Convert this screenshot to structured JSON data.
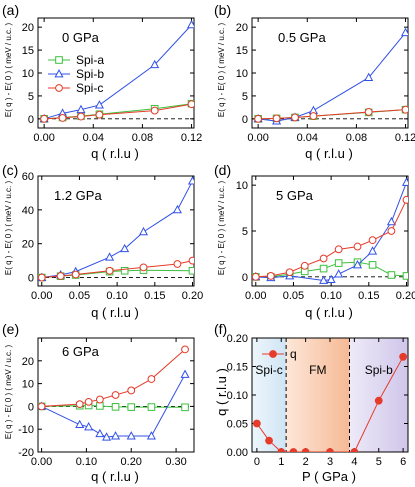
{
  "styles": {
    "green": "#3cc03c",
    "blue": "#3050e6",
    "red": "#e63a2a",
    "axis": "#000000",
    "phase_spi_c": "#d6e9f6",
    "phase_fm": "#f9c7a4",
    "phase_spi_b": "#ddd6f0"
  },
  "chart_data": [
    {
      "panel": "(a)",
      "type": "line",
      "annotation": "0 GPa",
      "xlabel": "q ( r.l.u )",
      "ylabel": "E( q ) - E( 0 ) ( meV / u.c. )",
      "xlim": [
        -0.005,
        0.122
      ],
      "ylim": [
        -2,
        22
      ],
      "xticks": [
        "0.00",
        "0.04",
        "0.08",
        "0.12"
      ],
      "xtick_values": [
        0,
        0.04,
        0.08,
        0.12
      ],
      "yticks": [
        "0",
        "5",
        "10",
        "15",
        "20"
      ],
      "ytick_values": [
        0,
        5,
        10,
        15,
        20
      ],
      "show_x_ticklabels": true,
      "zero_line": true,
      "legend": "top-left",
      "series": [
        {
          "name": "Spi-a",
          "color_key": "green",
          "marker": "square",
          "x": [
            0,
            0.015,
            0.03,
            0.045,
            0.09,
            0.12
          ],
          "y": [
            0,
            0.3,
            0.6,
            1.0,
            2.2,
            3.3
          ]
        },
        {
          "name": "Spi-b",
          "color_key": "blue",
          "marker": "triangle",
          "x": [
            0,
            0.015,
            0.03,
            0.045,
            0.09,
            0.12
          ],
          "y": [
            0,
            1.2,
            2.0,
            3.0,
            11.8,
            20.5
          ]
        },
        {
          "name": "Spi-c",
          "color_key": "red",
          "marker": "circle",
          "x": [
            0,
            0.015,
            0.03,
            0.045,
            0.09,
            0.12
          ],
          "y": [
            0,
            0.2,
            0.5,
            0.9,
            1.8,
            3.2
          ]
        }
      ]
    },
    {
      "panel": "(b)",
      "type": "line",
      "annotation": "0.5 GPa",
      "xlabel": "q ( r.l.u )",
      "ylabel": "",
      "xlim": [
        -0.005,
        0.122
      ],
      "ylim": [
        -2,
        22
      ],
      "xticks": [
        "0.00",
        "0.04",
        "0.08",
        "0.12"
      ],
      "xtick_values": [
        0,
        0.04,
        0.08,
        0.12
      ],
      "yticks": [
        "0",
        "5",
        "10",
        "15",
        "20"
      ],
      "ytick_values": [
        0,
        5,
        10,
        15,
        20
      ],
      "show_x_ticklabels": true,
      "zero_line": true,
      "series": [
        {
          "name": "Spi-a",
          "color_key": "green",
          "marker": "square",
          "x": [
            0,
            0.015,
            0.03,
            0.045,
            0.09,
            0.12
          ],
          "y": [
            0,
            0.1,
            0.3,
            0.6,
            1.4,
            2.0
          ]
        },
        {
          "name": "Spi-b",
          "color_key": "blue",
          "marker": "triangle",
          "x": [
            0,
            0.015,
            0.03,
            0.045,
            0.09,
            0.12
          ],
          "y": [
            0,
            -0.5,
            0.3,
            1.8,
            9.0,
            18.8
          ]
        },
        {
          "name": "Spi-c",
          "color_key": "red",
          "marker": "circle",
          "x": [
            0,
            0.015,
            0.03,
            0.045,
            0.09,
            0.12
          ],
          "y": [
            0,
            0.1,
            0.3,
            0.6,
            1.5,
            2.0
          ]
        }
      ]
    },
    {
      "panel": "(c)",
      "type": "line",
      "annotation": "1.2 GPa",
      "xlabel": "q ( r.l.u )",
      "ylabel": "E( q ) - E( 0 ) ( meV / u.c. )",
      "xlim": [
        -0.005,
        0.202
      ],
      "ylim": [
        -5,
        60
      ],
      "xticks": [
        "0.00",
        "0.05",
        "0.10",
        "0.15",
        "0.20"
      ],
      "xtick_values": [
        0,
        0.05,
        0.1,
        0.15,
        0.2
      ],
      "yticks": [
        "0",
        "20",
        "40",
        "60"
      ],
      "ytick_values": [
        0,
        20,
        40,
        60
      ],
      "show_x_ticklabels": true,
      "zero_line": true,
      "series": [
        {
          "name": "Spi-a",
          "color_key": "green",
          "marker": "square",
          "x": [
            0,
            0.025,
            0.045,
            0.09,
            0.11,
            0.135,
            0.2
          ],
          "y": [
            0,
            0.8,
            1.5,
            3.5,
            4.0,
            4.3,
            4.0
          ]
        },
        {
          "name": "Spi-b",
          "color_key": "blue",
          "marker": "triangle",
          "x": [
            0,
            0.025,
            0.045,
            0.09,
            0.11,
            0.135,
            0.18,
            0.2
          ],
          "y": [
            0,
            1.5,
            3.5,
            12.0,
            17.0,
            27.0,
            40.0,
            57.0
          ]
        },
        {
          "name": "Spi-c",
          "color_key": "red",
          "marker": "circle",
          "x": [
            0,
            0.025,
            0.045,
            0.09,
            0.135,
            0.18,
            0.2
          ],
          "y": [
            0,
            0.9,
            1.8,
            4.0,
            6.0,
            8.0,
            10.0
          ]
        }
      ]
    },
    {
      "panel": "(d)",
      "type": "line",
      "annotation": "5 GPa",
      "xlabel": "q ( r.l.u )",
      "ylabel": "",
      "xlim": [
        -0.005,
        0.202
      ],
      "ylim": [
        -1,
        11
      ],
      "xticks": [
        "0.00",
        "0.05",
        "0.10",
        "0.15",
        "0.20"
      ],
      "xtick_values": [
        0,
        0.05,
        0.1,
        0.15,
        0.2
      ],
      "yticks": [
        "0",
        "5",
        "10"
      ],
      "ytick_values": [
        0,
        5,
        10
      ],
      "show_x_ticklabels": true,
      "zero_line": true,
      "series": [
        {
          "name": "Spi-a",
          "color_key": "green",
          "marker": "square",
          "x": [
            0,
            0.02,
            0.045,
            0.065,
            0.09,
            0.11,
            0.135,
            0.155,
            0.18,
            0.2
          ],
          "y": [
            0,
            0.0,
            0.3,
            0.6,
            0.9,
            1.5,
            1.6,
            1.3,
            0.2,
            0.1
          ]
        },
        {
          "name": "Spi-b",
          "color_key": "blue",
          "marker": "triangle",
          "x": [
            0,
            0.02,
            0.045,
            0.09,
            0.1,
            0.11,
            0.135,
            0.155,
            0.18,
            0.2
          ],
          "y": [
            0,
            -0.1,
            0.1,
            -0.4,
            -0.3,
            0.3,
            1.3,
            2.8,
            6.0,
            10.3
          ]
        },
        {
          "name": "Spi-c",
          "color_key": "red",
          "marker": "circle",
          "x": [
            0,
            0.02,
            0.045,
            0.065,
            0.09,
            0.11,
            0.135,
            0.155,
            0.18,
            0.2
          ],
          "y": [
            0,
            0.1,
            0.5,
            1.2,
            2.0,
            3.0,
            3.3,
            4.0,
            5.0,
            8.4
          ]
        }
      ]
    },
    {
      "panel": "(e)",
      "type": "line",
      "annotation": "6 GPa",
      "xlabel": "q ( r.l.u )",
      "ylabel": "E( q ) - E( 0 ) ( meV / u.c. )",
      "xlim": [
        -0.008,
        0.34
      ],
      "ylim": [
        -20,
        30
      ],
      "xticks": [
        "0.00",
        "0.10",
        "0.20",
        "0.30"
      ],
      "xtick_values": [
        0,
        0.1,
        0.2,
        0.3
      ],
      "yticks": [
        "-20",
        "-10",
        "0",
        "10",
        "20"
      ],
      "ytick_values": [
        -20,
        -10,
        0,
        10,
        20
      ],
      "show_x_ticklabels": true,
      "zero_line": true,
      "series": [
        {
          "name": "Spi-a",
          "color_key": "green",
          "marker": "square",
          "x": [
            0,
            0.085,
            0.105,
            0.13,
            0.165,
            0.2,
            0.245,
            0.32
          ],
          "y": [
            0,
            0.3,
            0.4,
            0.2,
            -0.2,
            -0.3,
            -0.3,
            -0.4
          ]
        },
        {
          "name": "Spi-b",
          "color_key": "blue",
          "marker": "triangle",
          "x": [
            0,
            0.085,
            0.105,
            0.13,
            0.145,
            0.165,
            0.2,
            0.245,
            0.32
          ],
          "y": [
            0,
            -8.0,
            -9.0,
            -12.0,
            -13.5,
            -13.0,
            -13.0,
            -13.0,
            14.0
          ]
        },
        {
          "name": "Spi-c",
          "color_key": "red",
          "marker": "circle",
          "x": [
            0,
            0.085,
            0.105,
            0.13,
            0.165,
            0.2,
            0.245,
            0.32
          ],
          "y": [
            0,
            1.0,
            2.0,
            3.0,
            5.0,
            7.0,
            12.0,
            25.0
          ]
        }
      ]
    },
    {
      "panel": "(f)",
      "type": "line",
      "xlabel": "P ( GPa )",
      "ylabel": "q ( r.l.u )",
      "xlim": [
        -0.2,
        6.2
      ],
      "ylim": [
        0,
        0.2
      ],
      "xticks": [
        "0",
        "1",
        "2",
        "3",
        "4",
        "5",
        "6"
      ],
      "xtick_values": [
        0,
        1,
        2,
        3,
        4,
        5,
        6
      ],
      "yticks": [
        "0.00",
        "0.05",
        "0.10",
        "0.15",
        "0.20"
      ],
      "ytick_values": [
        0,
        0.05,
        0.1,
        0.15,
        0.2
      ],
      "show_x_ticklabels": true,
      "zero_line": false,
      "legend": "top-left",
      "phase_boundaries": [
        1.2,
        3.8
      ],
      "phases": [
        {
          "label": "Spi-c",
          "from": -0.2,
          "to": 1.2,
          "color_key": "phase_spi_c"
        },
        {
          "label": "FM",
          "from": 1.2,
          "to": 3.8,
          "color_key": "phase_fm"
        },
        {
          "label": "Spi-b",
          "from": 3.8,
          "to": 6.2,
          "color_key": "phase_spi_b"
        }
      ],
      "series": [
        {
          "name": "q",
          "color_key": "red",
          "marker": "filled-circle",
          "x": [
            0,
            0.5,
            1.0,
            1.5,
            2.0,
            3.0,
            4.0,
            5.0,
            6.0
          ],
          "y": [
            0.05,
            0.02,
            0.0,
            0.0,
            0.0,
            0.0,
            0.0,
            0.09,
            0.167
          ]
        }
      ]
    }
  ]
}
